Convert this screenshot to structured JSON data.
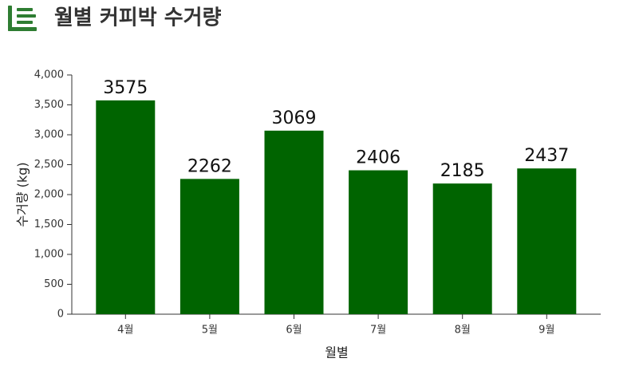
{
  "chart_data": {
    "type": "bar",
    "title": "월별 커피박 수거량",
    "x_label": "월별",
    "y_label": "수거량 (kg)",
    "categories": [
      "4월",
      "5월",
      "6월",
      "7월",
      "8월",
      "9월"
    ],
    "values": [
      3575,
      2262,
      3069,
      2406,
      2185,
      2437
    ],
    "color": "#006400",
    "ylim": [
      0,
      4000
    ],
    "yticks": [
      0,
      500,
      {
        "value": 1000,
        "label": "1,000"
      },
      {
        "value": 1500,
        "label": "1,500"
      },
      {
        "value": 2000,
        "label": "2,000"
      },
      {
        "value": 2500,
        "label": "2,500"
      },
      {
        "value": 3000,
        "label": "3,000"
      },
      {
        "value": 3500,
        "label": "3,500"
      },
      {
        "value": 4000,
        "label": "4,000"
      }
    ]
  }
}
